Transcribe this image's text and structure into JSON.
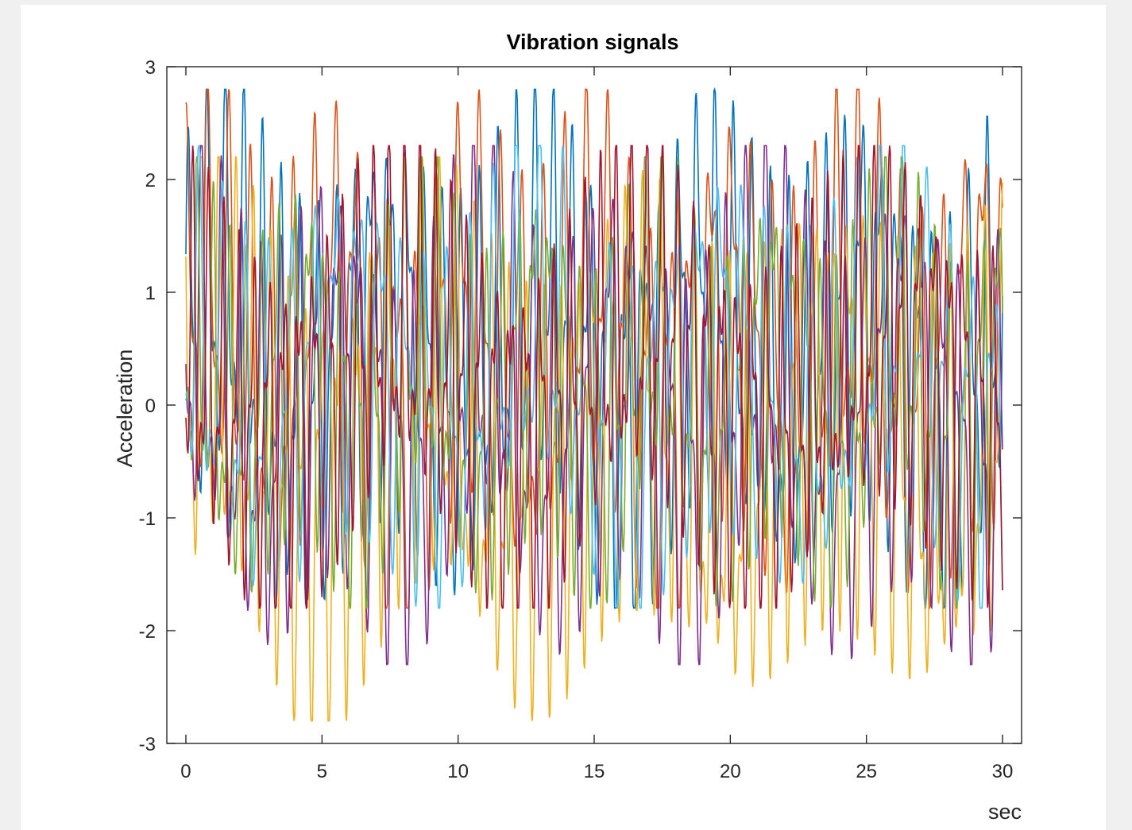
{
  "chart_data": {
    "type": "line",
    "title": "Vibration signals",
    "xlabel": "sec",
    "ylabel": "Acceleration",
    "xlim": [
      -0.7,
      30.7
    ],
    "ylim": [
      -3,
      3
    ],
    "xticks": [
      0,
      5,
      10,
      15,
      20,
      25,
      30
    ],
    "yticks": [
      -3,
      -2,
      -1,
      0,
      1,
      2,
      3
    ],
    "xtick_labels": [
      "0",
      "5",
      "10",
      "15",
      "20",
      "25",
      "30"
    ],
    "ytick_labels": [
      "-3",
      "-2",
      "-1",
      "0",
      "1",
      "2",
      "3"
    ],
    "grid": false,
    "legend": "none",
    "series_note_count": 7,
    "series": [
      {
        "color": "#0072BD",
        "lo": -1.8,
        "hi": 2.8,
        "f1": 1.5,
        "f2": 0.17,
        "phase": 0.3
      },
      {
        "color": "#D95319",
        "lo": -1.8,
        "hi": 2.8,
        "f1": 1.3,
        "f2": 0.21,
        "phase": 1.1
      },
      {
        "color": "#EDB120",
        "lo": -2.8,
        "hi": 2.2,
        "f1": 1.6,
        "f2": 0.13,
        "phase": 2.0
      },
      {
        "color": "#7E2F8E",
        "lo": -2.3,
        "hi": 2.3,
        "f1": 1.4,
        "f2": 0.19,
        "phase": 2.7
      },
      {
        "color": "#77AC30",
        "lo": -1.8,
        "hi": 2.2,
        "f1": 1.7,
        "f2": 0.23,
        "phase": 3.4
      },
      {
        "color": "#4DBEEE",
        "lo": -1.8,
        "hi": 2.3,
        "f1": 1.2,
        "f2": 0.15,
        "phase": 4.2
      },
      {
        "color": "#A2142F",
        "lo": -1.8,
        "hi": 2.3,
        "f1": 1.8,
        "f2": 0.11,
        "phase": 5.0
      }
    ],
    "t_max": 30,
    "samples_per_sec": 40
  }
}
